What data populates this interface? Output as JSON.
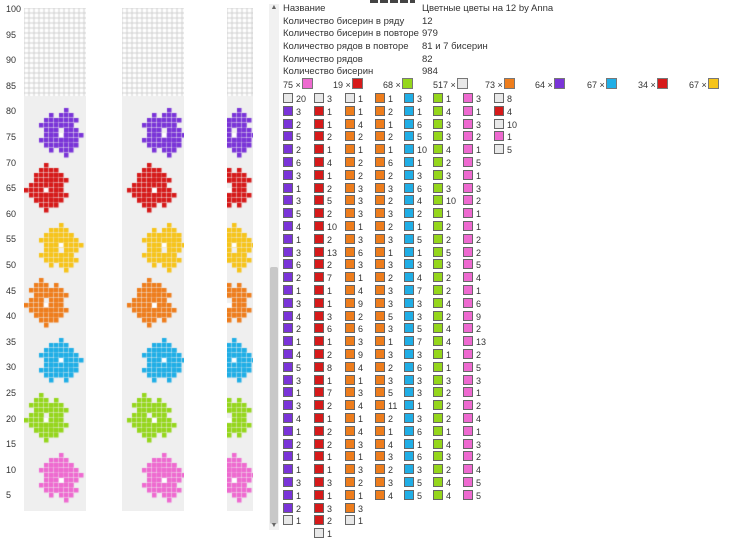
{
  "axis_labels": [
    "100",
    "95",
    "90",
    "85",
    "80",
    "75",
    "70",
    "65",
    "60",
    "55",
    "50",
    "45",
    "40",
    "35",
    "30",
    "25",
    "20",
    "15",
    "10",
    "5"
  ],
  "info": [
    {
      "k": "Название",
      "v": "Цветные цветы на 12 by Anna"
    },
    {
      "k": "Количество бисерин в ряду",
      "v": "12"
    },
    {
      "k": "Количество бисерин в повторе",
      "v": "979"
    },
    {
      "k": "Количество рядов в повторе",
      "v": "81 и 7 бисерин"
    },
    {
      "k": "Количество рядов",
      "v": "82"
    },
    {
      "k": "Количество бисерин",
      "v": "984"
    }
  ],
  "colors": {
    "pink": "#ee6ad0",
    "purple": "#7a34d8",
    "red": "#d61a1a",
    "green": "#95d61c",
    "white": "#e8e8e8",
    "blue": "#20aee6",
    "orange": "#ee7d1c",
    "yellow": "#f6c41a"
  },
  "legend": [
    {
      "count": "75",
      "times": "×",
      "color": "pink"
    },
    {
      "count": "19",
      "times": "×",
      "color": "red"
    },
    {
      "count": "68",
      "times": "×",
      "color": "green"
    },
    {
      "count": "517",
      "times": "×",
      "color": "white"
    },
    {
      "count": "73",
      "times": "×",
      "color": "orange"
    },
    {
      "count": "64",
      "times": "×",
      "color": "purple"
    },
    {
      "count": "67",
      "times": "×",
      "color": "blue"
    },
    {
      "count": "34",
      "times": "×",
      "color": "red"
    },
    {
      "count": "67",
      "times": "×",
      "color": "yellow"
    }
  ],
  "bead_columns": [
    [
      [
        "20",
        "white"
      ],
      [
        "3",
        "purple"
      ],
      [
        "2",
        "purple"
      ],
      [
        "5",
        "purple"
      ],
      [
        "2",
        "purple"
      ],
      [
        "6",
        "purple"
      ],
      [
        "3",
        "purple"
      ],
      [
        "1",
        "purple"
      ],
      [
        "3",
        "purple"
      ],
      [
        "5",
        "purple"
      ],
      [
        "4",
        "purple"
      ],
      [
        "1",
        "purple"
      ],
      [
        "3",
        "purple"
      ],
      [
        "6",
        "purple"
      ],
      [
        "2",
        "purple"
      ],
      [
        "1",
        "purple"
      ],
      [
        "3",
        "purple"
      ],
      [
        "4",
        "purple"
      ],
      [
        "2",
        "purple"
      ],
      [
        "1",
        "purple"
      ],
      [
        "4",
        "purple"
      ],
      [
        "5",
        "purple"
      ],
      [
        "3",
        "purple"
      ],
      [
        "1",
        "purple"
      ],
      [
        "3",
        "purple"
      ],
      [
        "4",
        "purple"
      ],
      [
        "1",
        "purple"
      ],
      [
        "2",
        "purple"
      ],
      [
        "1",
        "purple"
      ],
      [
        "1",
        "purple"
      ],
      [
        "3",
        "purple"
      ],
      [
        "1",
        "purple"
      ],
      [
        "2",
        "purple"
      ],
      [
        "1",
        "white"
      ]
    ],
    [
      [
        "3",
        "white"
      ],
      [
        "1",
        "red"
      ],
      [
        "1",
        "red"
      ],
      [
        "2",
        "red"
      ],
      [
        "1",
        "red"
      ],
      [
        "4",
        "red"
      ],
      [
        "1",
        "red"
      ],
      [
        "2",
        "red"
      ],
      [
        "5",
        "red"
      ],
      [
        "2",
        "red"
      ],
      [
        "10",
        "red"
      ],
      [
        "2",
        "red"
      ],
      [
        "13",
        "red"
      ],
      [
        "2",
        "red"
      ],
      [
        "7",
        "red"
      ],
      [
        "1",
        "red"
      ],
      [
        "1",
        "red"
      ],
      [
        "3",
        "red"
      ],
      [
        "6",
        "red"
      ],
      [
        "1",
        "red"
      ],
      [
        "2",
        "red"
      ],
      [
        "8",
        "red"
      ],
      [
        "1",
        "red"
      ],
      [
        "7",
        "red"
      ],
      [
        "2",
        "red"
      ],
      [
        "1",
        "red"
      ],
      [
        "2",
        "red"
      ],
      [
        "2",
        "red"
      ],
      [
        "1",
        "red"
      ],
      [
        "1",
        "red"
      ],
      [
        "3",
        "red"
      ],
      [
        "1",
        "red"
      ],
      [
        "3",
        "red"
      ],
      [
        "2",
        "red"
      ],
      [
        "1",
        "white"
      ]
    ],
    [
      [
        "1",
        "white"
      ],
      [
        "1",
        "orange"
      ],
      [
        "4",
        "orange"
      ],
      [
        "2",
        "orange"
      ],
      [
        "1",
        "orange"
      ],
      [
        "2",
        "orange"
      ],
      [
        "2",
        "orange"
      ],
      [
        "3",
        "orange"
      ],
      [
        "3",
        "orange"
      ],
      [
        "3",
        "orange"
      ],
      [
        "1",
        "orange"
      ],
      [
        "3",
        "orange"
      ],
      [
        "6",
        "orange"
      ],
      [
        "3",
        "orange"
      ],
      [
        "1",
        "orange"
      ],
      [
        "4",
        "orange"
      ],
      [
        "9",
        "orange"
      ],
      [
        "2",
        "orange"
      ],
      [
        "6",
        "orange"
      ],
      [
        "3",
        "orange"
      ],
      [
        "9",
        "orange"
      ],
      [
        "4",
        "orange"
      ],
      [
        "1",
        "orange"
      ],
      [
        "3",
        "orange"
      ],
      [
        "4",
        "orange"
      ],
      [
        "1",
        "orange"
      ],
      [
        "4",
        "orange"
      ],
      [
        "3",
        "orange"
      ],
      [
        "1",
        "orange"
      ],
      [
        "3",
        "orange"
      ],
      [
        "2",
        "orange"
      ],
      [
        "1",
        "orange"
      ],
      [
        "3",
        "orange"
      ],
      [
        "1",
        "white"
      ]
    ],
    [
      [
        "1",
        "orange"
      ],
      [
        "2",
        "orange"
      ],
      [
        "1",
        "orange"
      ],
      [
        "2",
        "orange"
      ],
      [
        "1",
        "orange"
      ],
      [
        "6",
        "orange"
      ],
      [
        "2",
        "orange"
      ],
      [
        "3",
        "orange"
      ],
      [
        "2",
        "orange"
      ],
      [
        "3",
        "orange"
      ],
      [
        "2",
        "orange"
      ],
      [
        "3",
        "orange"
      ],
      [
        "1",
        "orange"
      ],
      [
        "3",
        "orange"
      ],
      [
        "2",
        "orange"
      ],
      [
        "3",
        "orange"
      ],
      [
        "3",
        "orange"
      ],
      [
        "5",
        "orange"
      ],
      [
        "3",
        "orange"
      ],
      [
        "1",
        "orange"
      ],
      [
        "3",
        "orange"
      ],
      [
        "2",
        "orange"
      ],
      [
        "3",
        "orange"
      ],
      [
        "5",
        "orange"
      ],
      [
        "11",
        "orange"
      ],
      [
        "2",
        "orange"
      ],
      [
        "1",
        "orange"
      ],
      [
        "4",
        "orange"
      ],
      [
        "3",
        "orange"
      ],
      [
        "2",
        "orange"
      ],
      [
        "3",
        "orange"
      ],
      [
        "4",
        "orange"
      ]
    ],
    [
      [
        "3",
        "blue"
      ],
      [
        "1",
        "blue"
      ],
      [
        "6",
        "blue"
      ],
      [
        "5",
        "blue"
      ],
      [
        "10",
        "blue"
      ],
      [
        "1",
        "blue"
      ],
      [
        "3",
        "blue"
      ],
      [
        "6",
        "blue"
      ],
      [
        "4",
        "blue"
      ],
      [
        "2",
        "blue"
      ],
      [
        "1",
        "blue"
      ],
      [
        "5",
        "blue"
      ],
      [
        "1",
        "blue"
      ],
      [
        "3",
        "blue"
      ],
      [
        "4",
        "blue"
      ],
      [
        "7",
        "blue"
      ],
      [
        "3",
        "blue"
      ],
      [
        "3",
        "blue"
      ],
      [
        "5",
        "blue"
      ],
      [
        "7",
        "blue"
      ],
      [
        "3",
        "blue"
      ],
      [
        "6",
        "blue"
      ],
      [
        "3",
        "blue"
      ],
      [
        "3",
        "blue"
      ],
      [
        "1",
        "blue"
      ],
      [
        "3",
        "blue"
      ],
      [
        "6",
        "blue"
      ],
      [
        "1",
        "blue"
      ],
      [
        "6",
        "blue"
      ],
      [
        "3",
        "blue"
      ],
      [
        "5",
        "blue"
      ],
      [
        "5",
        "blue"
      ]
    ],
    [
      [
        "1",
        "green"
      ],
      [
        "4",
        "green"
      ],
      [
        "3",
        "green"
      ],
      [
        "3",
        "green"
      ],
      [
        "4",
        "green"
      ],
      [
        "2",
        "green"
      ],
      [
        "3",
        "green"
      ],
      [
        "3",
        "green"
      ],
      [
        "10",
        "green"
      ],
      [
        "1",
        "green"
      ],
      [
        "2",
        "green"
      ],
      [
        "2",
        "green"
      ],
      [
        "5",
        "green"
      ],
      [
        "3",
        "green"
      ],
      [
        "2",
        "green"
      ],
      [
        "2",
        "green"
      ],
      [
        "4",
        "green"
      ],
      [
        "2",
        "green"
      ],
      [
        "4",
        "green"
      ],
      [
        "4",
        "green"
      ],
      [
        "1",
        "green"
      ],
      [
        "1",
        "green"
      ],
      [
        "3",
        "green"
      ],
      [
        "2",
        "green"
      ],
      [
        "2",
        "green"
      ],
      [
        "2",
        "green"
      ],
      [
        "1",
        "green"
      ],
      [
        "4",
        "green"
      ],
      [
        "3",
        "green"
      ],
      [
        "2",
        "green"
      ],
      [
        "4",
        "green"
      ],
      [
        "4",
        "green"
      ]
    ],
    [
      [
        "3",
        "pink"
      ],
      [
        "1",
        "pink"
      ],
      [
        "3",
        "pink"
      ],
      [
        "2",
        "pink"
      ],
      [
        "1",
        "pink"
      ],
      [
        "5",
        "pink"
      ],
      [
        "1",
        "pink"
      ],
      [
        "3",
        "pink"
      ],
      [
        "2",
        "pink"
      ],
      [
        "1",
        "pink"
      ],
      [
        "1",
        "pink"
      ],
      [
        "2",
        "pink"
      ],
      [
        "2",
        "pink"
      ],
      [
        "5",
        "pink"
      ],
      [
        "4",
        "pink"
      ],
      [
        "1",
        "pink"
      ],
      [
        "6",
        "pink"
      ],
      [
        "9",
        "pink"
      ],
      [
        "2",
        "pink"
      ],
      [
        "13",
        "pink"
      ],
      [
        "2",
        "pink"
      ],
      [
        "5",
        "pink"
      ],
      [
        "3",
        "pink"
      ],
      [
        "1",
        "pink"
      ],
      [
        "2",
        "pink"
      ],
      [
        "4",
        "pink"
      ],
      [
        "1",
        "pink"
      ],
      [
        "3",
        "pink"
      ],
      [
        "2",
        "pink"
      ],
      [
        "4",
        "pink"
      ],
      [
        "5",
        "pink"
      ],
      [
        "5",
        "pink"
      ]
    ],
    [
      [
        "8",
        "white"
      ],
      [
        "4",
        "red"
      ],
      [
        "10",
        "white"
      ],
      [
        "1",
        "pink"
      ],
      [
        "5",
        "white"
      ]
    ]
  ]
}
